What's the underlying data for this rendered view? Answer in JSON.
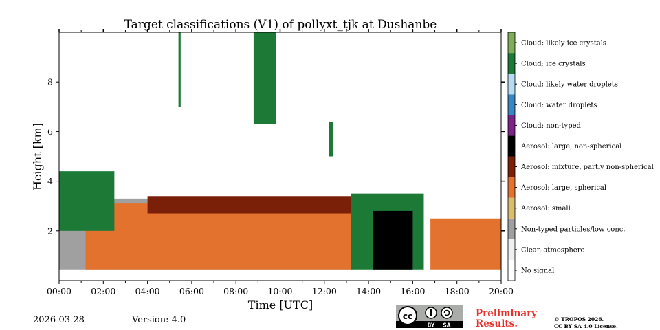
{
  "chart_data": {
    "type": "heatmap",
    "title": "Target classifications (V1) of pollyxt_tjk at Dushanbe",
    "xlabel": "Time [UTC]",
    "ylabel": "Height [km]",
    "xlim": [
      0,
      20
    ],
    "ylim": [
      0,
      10
    ],
    "x_ticks": [
      "00:00",
      "02:00",
      "04:00",
      "06:00",
      "08:00",
      "10:00",
      "12:00",
      "14:00",
      "16:00",
      "18:00",
      "20:00"
    ],
    "y_ticks": [
      "2",
      "4",
      "6",
      "8"
    ],
    "y_tick_values": [
      2,
      4,
      6,
      8
    ],
    "colorbar": [
      {
        "label": "No signal",
        "color": "#ffffff"
      },
      {
        "label": "Clean atmosphere",
        "color": "#f0f0f0"
      },
      {
        "label": "Non-typed particles/low conc.",
        "color": "#a0a0a0"
      },
      {
        "label": "Aerosol: small",
        "color": "#dcbd6e"
      },
      {
        "label": "Aerosol: large, spherical",
        "color": "#e3722f"
      },
      {
        "label": "Aerosol: mixture, partly non-spherical",
        "color": "#7a1f08"
      },
      {
        "label": "Aerosol: large, non-spherical",
        "color": "#000000"
      },
      {
        "label": "Cloud: non-typed",
        "color": "#7c2288"
      },
      {
        "label": "Cloud: water droplets",
        "color": "#3a86c5"
      },
      {
        "label": "Cloud: likely water droplets",
        "color": "#b6dcf2"
      },
      {
        "label": "Cloud: ice crystals",
        "color": "#1c7a36"
      },
      {
        "label": "Cloud: likely ice crystals",
        "color": "#7fae5a"
      }
    ],
    "regions": [
      {
        "class": "Non-typed particles/low conc.",
        "time_start": 0.0,
        "time_end": 13.3,
        "height_bottom": 0.45,
        "height_top": 3.3
      },
      {
        "class": "Aerosol: large, spherical",
        "time_start": 1.2,
        "time_end": 13.2,
        "height_bottom": 0.45,
        "height_top": 3.1
      },
      {
        "class": "Aerosol: mixture, partly non-spherical",
        "time_start": 4.0,
        "time_end": 13.2,
        "height_bottom": 2.7,
        "height_top": 3.4
      },
      {
        "class": "Cloud: ice crystals",
        "time_start": 0.0,
        "time_end": 2.5,
        "height_bottom": 2.0,
        "height_top": 4.4
      },
      {
        "class": "Cloud: ice crystals",
        "time_start": 13.2,
        "time_end": 16.5,
        "height_bottom": 0.45,
        "height_top": 3.5
      },
      {
        "class": "Cloud: ice crystals",
        "time_start": 5.4,
        "time_end": 5.5,
        "height_bottom": 7.0,
        "height_top": 10.0
      },
      {
        "class": "Cloud: ice crystals",
        "time_start": 8.8,
        "time_end": 9.8,
        "height_bottom": 6.3,
        "height_top": 10.0
      },
      {
        "class": "Cloud: ice crystals",
        "time_start": 12.2,
        "time_end": 12.4,
        "height_bottom": 5.0,
        "height_top": 6.4
      },
      {
        "class": "Aerosol: large, non-spherical",
        "time_start": 14.2,
        "time_end": 16.0,
        "height_bottom": 0.45,
        "height_top": 2.8
      },
      {
        "class": "Aerosol: large, spherical",
        "time_start": 16.8,
        "time_end": 20.0,
        "height_bottom": 0.45,
        "height_top": 2.5
      }
    ]
  },
  "footer": {
    "date": "2026-03-28",
    "version": "Version: 4.0",
    "prelim1": "Preliminary",
    "prelim2": "Results.",
    "lic1": "© TROPOS 2026.",
    "lic2": "CC BY SA 4.0 License.",
    "cc_logo": "cc",
    "cc_by": "BY",
    "cc_sa": "SA"
  }
}
